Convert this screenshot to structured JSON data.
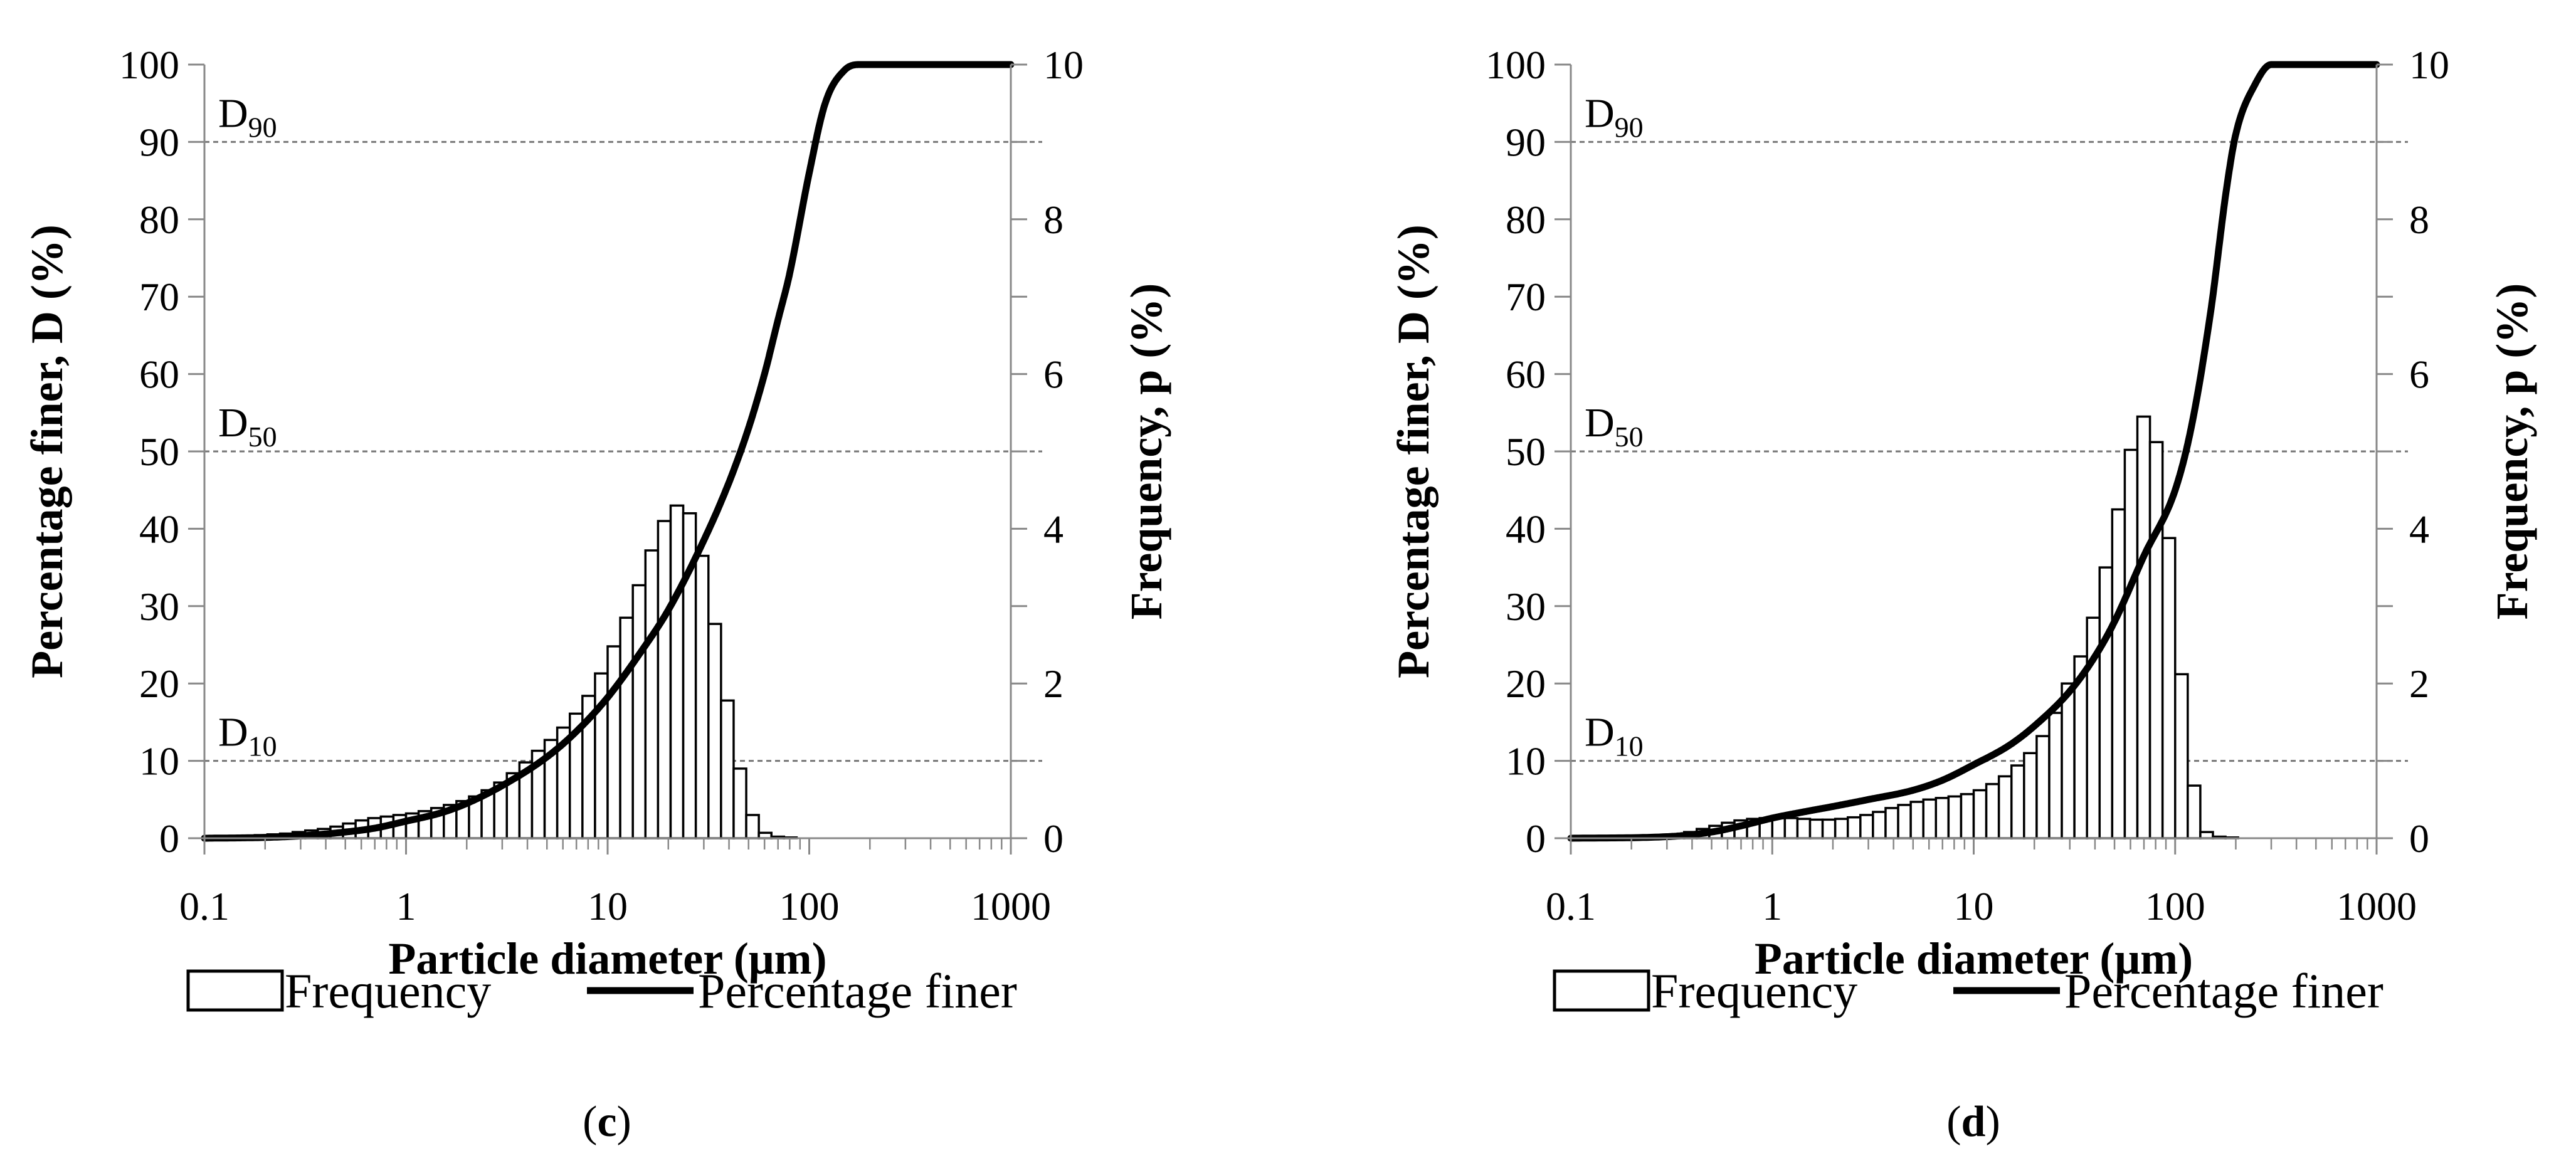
{
  "chart_data": [
    {
      "type": "bar+line",
      "panel_label": "c",
      "xlabel": "Particle diameter (μm)",
      "ylabel_left": "Percentage finer, D (%)",
      "ylabel_right": "Frequency, p (%)",
      "xscale": "log",
      "xlim": [
        0.1,
        1000
      ],
      "ylim_left": [
        0,
        100
      ],
      "ylim_right": [
        0,
        10
      ],
      "x_tick_labels": [
        "0.1",
        "1",
        "10",
        "100",
        "1000"
      ],
      "y_left_tick_labels": [
        "0",
        "10",
        "20",
        "30",
        "40",
        "50",
        "60",
        "70",
        "80",
        "90",
        "100"
      ],
      "y_right_tick_labels": [
        "0",
        "2",
        "4",
        "6",
        "8",
        "10"
      ],
      "reference_lines": [
        {
          "label": "D",
          "sub": "90",
          "value": 90
        },
        {
          "label": "D",
          "sub": "50",
          "value": 50
        },
        {
          "label": "D",
          "sub": "10",
          "value": 10
        }
      ],
      "legend": [
        {
          "label": "Frequency",
          "kind": "bar"
        },
        {
          "label": "Percentage finer",
          "kind": "line"
        }
      ],
      "frequency": {
        "name": "Frequency",
        "bin_edges_log10": [
          -1,
          0.13
        ],
        "bin_width_log10": 0.0625,
        "values": [
          0.02,
          0.02,
          0.03,
          0.03,
          0.04,
          0.05,
          0.06,
          0.08,
          0.1,
          0.12,
          0.15,
          0.19,
          0.23,
          0.26,
          0.28,
          0.3,
          0.32,
          0.35,
          0.39,
          0.43,
          0.48,
          0.54,
          0.62,
          0.72,
          0.84,
          0.98,
          1.13,
          1.27,
          1.43,
          1.61,
          1.84,
          2.13,
          2.48,
          2.85,
          3.27,
          3.72,
          4.1,
          4.3,
          4.2,
          3.65,
          2.77,
          1.78,
          0.9,
          0.3,
          0.07,
          0.02,
          0.01
        ]
      },
      "percentage_finer": {
        "name": "Percentage finer",
        "x": [
          0.1,
          0.2,
          0.3,
          0.5,
          0.7,
          1,
          1.5,
          2,
          3,
          5,
          7,
          10,
          15,
          20,
          30,
          40,
          50,
          60,
          70,
          80,
          100,
          120,
          150,
          180,
          200,
          1000
        ],
        "y": [
          0,
          0.1,
          0.3,
          0.8,
          1.3,
          2.2,
          3.3,
          4.5,
          6.8,
          10.5,
          13.8,
          18.2,
          24.5,
          29.5,
          38.5,
          46,
          53,
          60,
          67,
          73,
          86,
          95,
          99.3,
          100,
          100,
          100
        ]
      }
    },
    {
      "type": "bar+line",
      "panel_label": "d",
      "xlabel": "Particle diameter (μm)",
      "ylabel_left": "Percentage finer, D (%)",
      "ylabel_right": "Frequency, p (%)",
      "xscale": "log",
      "xlim": [
        0.1,
        1000
      ],
      "ylim_left": [
        0,
        100
      ],
      "ylim_right": [
        0,
        10
      ],
      "x_tick_labels": [
        "0.1",
        "1",
        "10",
        "100",
        "1000"
      ],
      "y_left_tick_labels": [
        "0",
        "10",
        "20",
        "30",
        "40",
        "50",
        "60",
        "70",
        "80",
        "90",
        "100"
      ],
      "y_right_tick_labels": [
        "0",
        "2",
        "4",
        "6",
        "8",
        "10"
      ],
      "reference_lines": [
        {
          "label": "D",
          "sub": "90",
          "value": 90
        },
        {
          "label": "D",
          "sub": "50",
          "value": 50
        },
        {
          "label": "D",
          "sub": "10",
          "value": 10
        }
      ],
      "legend": [
        {
          "label": "Frequency",
          "kind": "bar"
        },
        {
          "label": "Percentage finer",
          "kind": "line"
        }
      ],
      "frequency": {
        "name": "Frequency",
        "bin_edges_log10": [
          -1,
          0.13
        ],
        "bin_width_log10": 0.0625,
        "values": [
          0.01,
          0.01,
          0.01,
          0.01,
          0.01,
          0.01,
          0.02,
          0.03,
          0.05,
          0.08,
          0.12,
          0.16,
          0.2,
          0.23,
          0.25,
          0.26,
          0.26,
          0.26,
          0.25,
          0.24,
          0.24,
          0.25,
          0.27,
          0.3,
          0.34,
          0.39,
          0.43,
          0.47,
          0.5,
          0.52,
          0.54,
          0.57,
          0.62,
          0.7,
          0.8,
          0.94,
          1.1,
          1.32,
          1.62,
          2.0,
          2.35,
          2.85,
          3.5,
          4.25,
          5.02,
          5.45,
          5.12,
          3.88,
          2.12,
          0.68,
          0.08,
          0.02,
          0.01
        ]
      },
      "percentage_finer": {
        "name": "Percentage finer",
        "x": [
          0.1,
          0.3,
          0.5,
          0.7,
          1,
          1.5,
          2,
          3,
          5,
          7,
          10,
          15,
          20,
          30,
          40,
          50,
          70,
          100,
          120,
          150,
          180,
          200,
          250,
          300,
          400,
          1000
        ],
        "y": [
          0,
          0.2,
          0.8,
          1.6,
          2.6,
          3.5,
          4.1,
          5,
          6.2,
          7.5,
          9.5,
          12,
          14.5,
          19,
          23.5,
          28,
          36.5,
          45,
          53,
          68,
          84,
          91,
          97.5,
          100,
          100,
          100
        ]
      }
    }
  ]
}
